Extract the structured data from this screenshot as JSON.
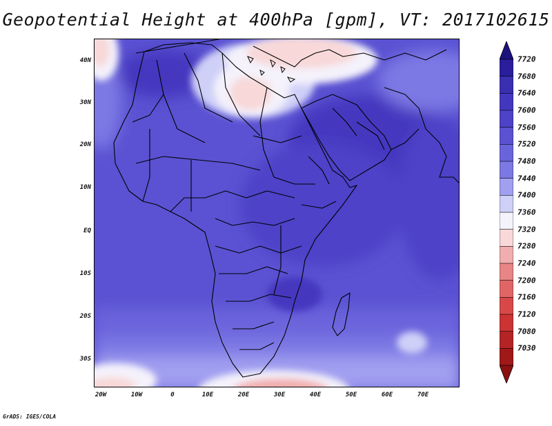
{
  "title": "Geopotential Height at 400hPa [gpm], VT: 2017102615",
  "credit": "GrADS: IGES/COLA",
  "lat_labels": [
    "40N",
    "30N",
    "20N",
    "10N",
    "EQ",
    "10S",
    "20S",
    "30S"
  ],
  "lon_labels": [
    "20W",
    "10W",
    "0",
    "10E",
    "20E",
    "30E",
    "40E",
    "50E",
    "60E",
    "70E"
  ],
  "colorbar": {
    "levels": [
      "7720",
      "7680",
      "7640",
      "7600",
      "7560",
      "7520",
      "7480",
      "7440",
      "7400",
      "7360",
      "7320",
      "7280",
      "7240",
      "7200",
      "7160",
      "7120",
      "7080",
      "7030"
    ],
    "colors": [
      "#2a1e9c",
      "#3a2fb0",
      "#4437bf",
      "#4d42c8",
      "#5a52d2",
      "#6a64dc",
      "#7c78e4",
      "#a19ff0",
      "#cfd0f8",
      "#f4f2fb",
      "#f8d8d8",
      "#f1aeae",
      "#e88585",
      "#e06666",
      "#d94848",
      "#cc3333",
      "#b52424",
      "#a01818"
    ],
    "top_arrow_color": "#1c127f",
    "bottom_arrow_color": "#8c1111"
  },
  "map_background": "#5a52d2"
}
